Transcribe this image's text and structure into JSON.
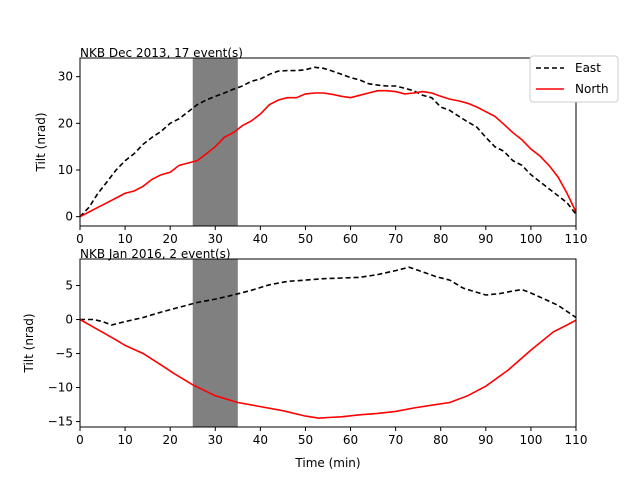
{
  "colors": {
    "east": "#000000",
    "north": "#ff0000",
    "shade": "#808080"
  },
  "legend": {
    "location": "top-right",
    "east_label": "East",
    "north_label": "North"
  },
  "chart_data": [
    {
      "type": "line",
      "title": "NKB Dec 2013, 17 event(s)",
      "ylabel": "Tilt (nrad)",
      "xlabel": "",
      "xlim": [
        0,
        110
      ],
      "ylim": [
        -2,
        34
      ],
      "xticks": [
        "0",
        "10",
        "20",
        "30",
        "40",
        "50",
        "60",
        "70",
        "80",
        "90",
        "100",
        "110"
      ],
      "yticks": [
        "0",
        "10",
        "20",
        "30"
      ],
      "shaded_span": [
        25,
        35
      ],
      "series": [
        {
          "name": "East",
          "style": "dashed",
          "x": [
            0,
            2,
            4,
            6,
            8,
            10,
            12,
            14,
            16,
            18,
            20,
            22,
            24,
            26,
            28,
            30,
            32,
            34,
            36,
            38,
            40,
            42,
            44,
            46,
            48,
            50,
            52,
            54,
            56,
            58,
            60,
            62,
            64,
            66,
            68,
            70,
            72,
            74,
            76,
            78,
            80,
            82,
            84,
            86,
            88,
            90,
            92,
            94,
            96,
            98,
            100,
            102,
            104,
            106,
            108,
            110
          ],
          "y": [
            0,
            2,
            5,
            7.5,
            10,
            12,
            13.5,
            15.5,
            17,
            18.3,
            20,
            21,
            22.5,
            24,
            25,
            25.8,
            26.5,
            27.3,
            28,
            29,
            29.5,
            30.5,
            31.2,
            31.3,
            31.3,
            31.5,
            32,
            31.8,
            31.2,
            30.5,
            29.8,
            29.3,
            28.5,
            28.2,
            28,
            28,
            27.5,
            27,
            26,
            25.5,
            23.5,
            22.8,
            21.5,
            20.3,
            19.2,
            17,
            15,
            14,
            12,
            11,
            9,
            7.5,
            6,
            4.5,
            3,
            0.5
          ]
        },
        {
          "name": "North",
          "style": "solid",
          "x": [
            0,
            2,
            4,
            6,
            8,
            10,
            12,
            14,
            16,
            18,
            20,
            22,
            24,
            26,
            28,
            30,
            32,
            34,
            36,
            38,
            40,
            42,
            44,
            46,
            48,
            50,
            52,
            54,
            56,
            58,
            60,
            62,
            64,
            66,
            68,
            70,
            72,
            74,
            76,
            78,
            80,
            82,
            84,
            86,
            88,
            90,
            92,
            94,
            96,
            98,
            100,
            102,
            104,
            106,
            108,
            110
          ],
          "y": [
            0,
            1,
            2,
            3,
            4,
            5,
            5.5,
            6.5,
            8,
            9,
            9.5,
            11,
            11.5,
            12,
            13.5,
            15,
            17,
            18,
            19.5,
            20.5,
            22,
            24,
            25,
            25.5,
            25.5,
            26.3,
            26.5,
            26.5,
            26.2,
            25.8,
            25.5,
            26,
            26.5,
            27,
            27,
            26.8,
            26.3,
            26.5,
            26.8,
            26.5,
            25.8,
            25.2,
            24.8,
            24.3,
            23.5,
            22.5,
            21.5,
            19.8,
            18,
            16.5,
            14.5,
            13,
            11,
            8.5,
            5,
            1
          ]
        }
      ]
    },
    {
      "type": "line",
      "title": "NKB Jan 2016, 2 event(s)",
      "ylabel": "Tilt (nrad)",
      "xlabel": "Time (min)",
      "xlim": [
        0,
        110
      ],
      "ylim": [
        -15.8,
        8.9
      ],
      "xticks": [
        "0",
        "10",
        "20",
        "30",
        "40",
        "50",
        "60",
        "70",
        "80",
        "90",
        "100",
        "110"
      ],
      "yticks": [
        "5",
        "0",
        "−5",
        "−10",
        "−15"
      ],
      "shaded_span": [
        25,
        35
      ],
      "series": [
        {
          "name": "East",
          "style": "dashed",
          "x": [
            0,
            3,
            5,
            7,
            10,
            14,
            18,
            22,
            26,
            30,
            34,
            38,
            42,
            46,
            50,
            54,
            58,
            62,
            66,
            70,
            73,
            76,
            79,
            82,
            85,
            88,
            90,
            93,
            96,
            98,
            100,
            103,
            106,
            110
          ],
          "y": [
            0,
            0,
            -0.3,
            -0.8,
            -0.3,
            0.3,
            1.1,
            1.8,
            2.5,
            3,
            3.6,
            4.3,
            5.1,
            5.6,
            5.8,
            6,
            6.1,
            6.2,
            6.6,
            7.2,
            7.7,
            7.0,
            6.3,
            5.8,
            4.6,
            4.0,
            3.6,
            3.8,
            4.2,
            4.4,
            3.9,
            3.0,
            2.1,
            0.3
          ]
        },
        {
          "name": "North",
          "style": "solid",
          "x": [
            0,
            4,
            8,
            10,
            14,
            18,
            21,
            25,
            30,
            35,
            40,
            45,
            50,
            53,
            55,
            58,
            62,
            66,
            70,
            74,
            78,
            82,
            86,
            90,
            95,
            100,
            105,
            108,
            110
          ],
          "y": [
            0,
            -1.5,
            -3,
            -3.8,
            -5,
            -6.7,
            -8,
            -9.6,
            -11.2,
            -12.2,
            -12.8,
            -13.4,
            -14.2,
            -14.5,
            -14.4,
            -14.3,
            -14,
            -13.8,
            -13.5,
            -13,
            -12.6,
            -12.2,
            -11.2,
            -9.8,
            -7.4,
            -4.5,
            -1.8,
            -0.8,
            -0.1
          ]
        }
      ]
    }
  ]
}
